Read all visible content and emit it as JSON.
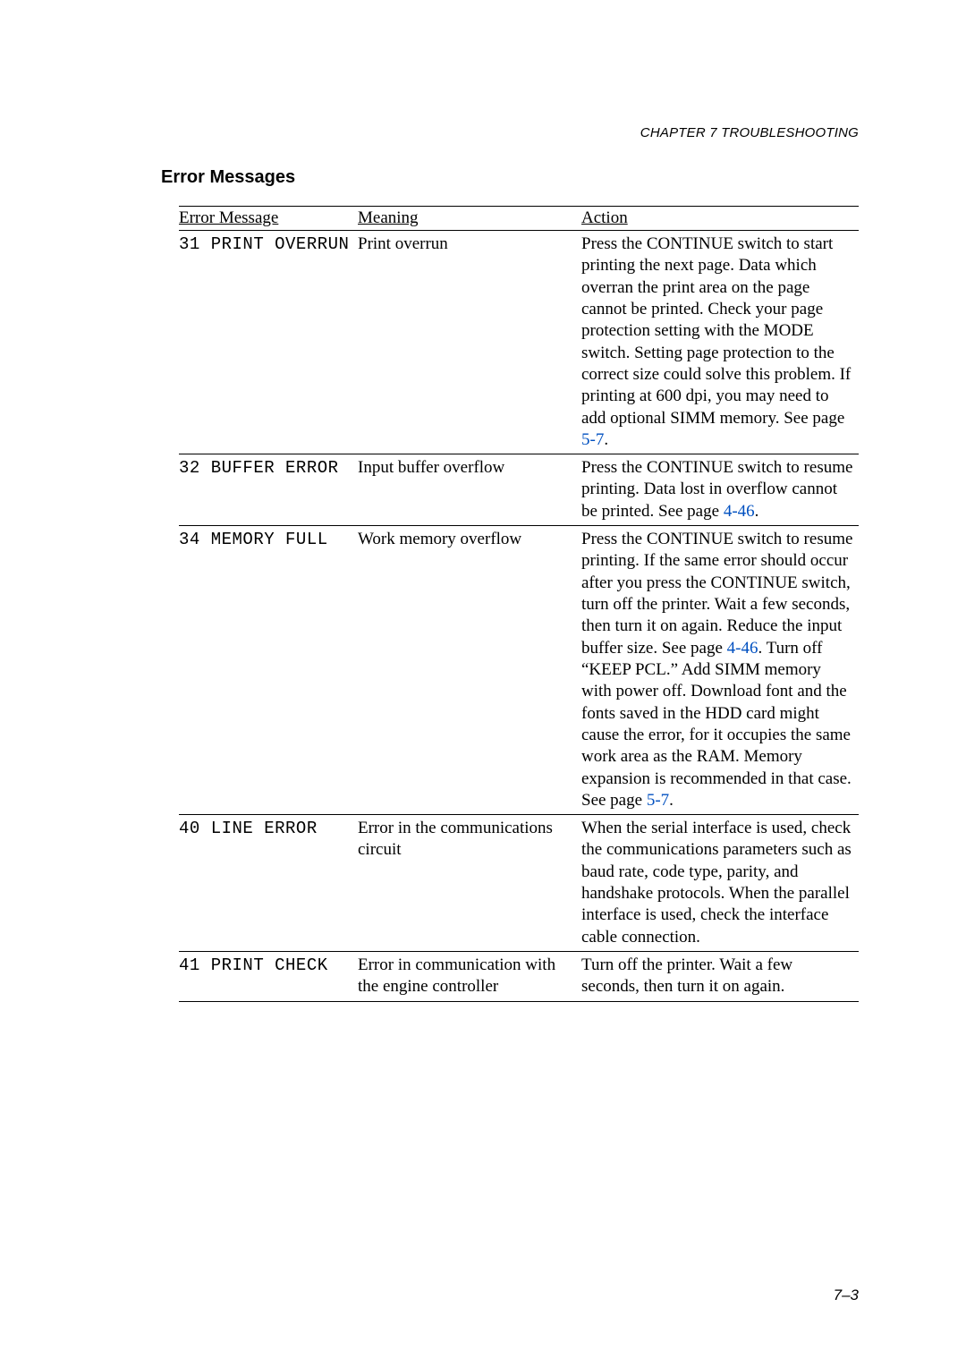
{
  "chapter_header": "CHAPTER 7 TROUBLESHOOTING",
  "section_title": "Error Messages",
  "table": {
    "headers": {
      "col1": "Error Message",
      "col2": "Meaning",
      "col3": "Action"
    },
    "rows": [
      {
        "code": "31 PRINT OVERRUN",
        "meaning": "Print overrun",
        "action_before": "Press the CONTINUE switch to start printing the next page. Data which overran the print area on the page cannot be printed. Check your page protection setting with the MODE switch. Setting page protection to the correct size could solve this problem. If printing at 600 dpi, you may need to add optional SIMM memory. See page ",
        "action_ref": "5-7",
        "action_after": "."
      },
      {
        "code": "32 BUFFER ERROR",
        "meaning": "Input buffer overflow",
        "action_before": "Press the CONTINUE switch to resume printing. Data lost in overflow cannot be printed. See page ",
        "action_ref": "4-46",
        "action_after": "."
      },
      {
        "code": "34 MEMORY FULL",
        "meaning": "Work memory overflow",
        "action_before": "Press the CONTINUE switch to resume printing. If the same error should occur after you press the CONTINUE switch, turn off the printer. Wait a few seconds, then turn it on again. Reduce the input buffer size. See page ",
        "action_ref": "4-46",
        "action_mid": ". Turn off “KEEP PCL.” Add SIMM memory with power off. Download font and the fonts saved in the HDD card might cause the error, for it occupies the same work area as the RAM. Memory expansion is recommended in that case. See page ",
        "action_ref2": "5-7",
        "action_after": "."
      },
      {
        "code": "40 LINE ERROR",
        "meaning": "Error in the communications circuit",
        "action_before": "When the serial interface is used, check the communications parameters such as baud rate, code type, parity, and handshake protocols. When the parallel interface is used, check the interface cable connection.",
        "action_ref": "",
        "action_after": ""
      },
      {
        "code": "41 PRINT CHECK",
        "meaning": "Error in communication with the engine controller",
        "action_before": "Turn off the printer. Wait a few seconds, then turn it on again.",
        "action_ref": "",
        "action_after": ""
      }
    ]
  },
  "page_number": "7–3",
  "link_color": "#0050c0"
}
